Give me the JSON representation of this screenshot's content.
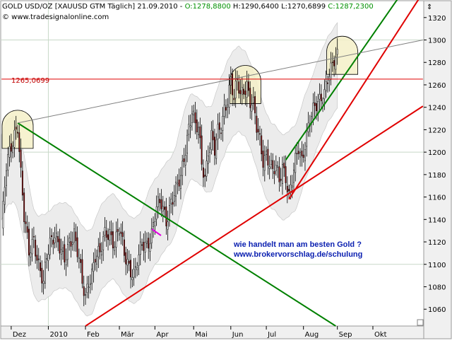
{
  "header": {
    "symbol_text": "GOLD USD/OZ [XAUUSD GTM  Täglich] 21.09.2010 - ",
    "open_text": "O:1278,8800",
    "hl_text": " H:1290,6400 L:1270,6899 ",
    "close_text": "C:1287,2300",
    "copyright": "© www.tradesignalonline.com",
    "scroll_arrow": "⇕"
  },
  "annotation": {
    "line1": "wie handelt man am besten Gold ?",
    "line2": "www.brokervorschlag.de/schulung"
  },
  "level_label": "1265,0699",
  "colors": {
    "up_candle": "#ffffff",
    "down_candle": "#8b0000",
    "wick": "#000000",
    "support_line": "#e00000",
    "downtrend_line": "#008000",
    "uptrend_line": "#008000",
    "resistance_level": "#e00000",
    "upper_trendline": "#808080",
    "envelope_fill": "#ececec",
    "top_highlight": "#f5f0c8",
    "annotation_text": "#0a1fb0"
  },
  "chart_data": {
    "type": "candlestick",
    "title": "GOLD USD/OZ",
    "ylim": [
      1045,
      1335
    ],
    "y_ticks": [
      1060,
      1080,
      1100,
      1120,
      1140,
      1160,
      1180,
      1200,
      1220,
      1240,
      1260,
      1280,
      1300,
      1320
    ],
    "y_tick_labels": [
      "1060",
      "1080",
      "1100",
      "1120",
      "1140",
      "1160",
      "1180",
      "1200",
      "1220",
      "1240",
      "1260",
      "1280",
      "1300",
      "1320"
    ],
    "x_ticks": [
      {
        "label": "Dez",
        "bar": 6
      },
      {
        "label": "2010",
        "bar": 29
      },
      {
        "label": "Feb",
        "bar": 52
      },
      {
        "label": "Mär",
        "bar": 73
      },
      {
        "label": "Apr",
        "bar": 95
      },
      {
        "label": "Mai",
        "bar": 119
      },
      {
        "label": "Jun",
        "bar": 142
      },
      {
        "label": "Jul",
        "bar": 164
      },
      {
        "label": "Aug",
        "bar": 187
      },
      {
        "label": "Sep",
        "bar": 208
      },
      {
        "label": "Okt",
        "bar": 230
      }
    ],
    "bar_count": 262,
    "close_path": [
      [
        0,
        1130
      ],
      [
        3,
        1185
      ],
      [
        6,
        1205
      ],
      [
        8,
        1218
      ],
      [
        10,
        1226
      ],
      [
        12,
        1180
      ],
      [
        14,
        1140
      ],
      [
        17,
        1110
      ],
      [
        20,
        1125
      ],
      [
        23,
        1100
      ],
      [
        26,
        1080
      ],
      [
        28,
        1105
      ],
      [
        30,
        1120
      ],
      [
        33,
        1130
      ],
      [
        36,
        1115
      ],
      [
        39,
        1100
      ],
      [
        42,
        1120
      ],
      [
        45,
        1130
      ],
      [
        48,
        1105
      ],
      [
        50,
        1080
      ],
      [
        52,
        1068
      ],
      [
        54,
        1085
      ],
      [
        56,
        1095
      ],
      [
        58,
        1110
      ],
      [
        61,
        1108
      ],
      [
        64,
        1125
      ],
      [
        67,
        1130
      ],
      [
        70,
        1120
      ],
      [
        73,
        1130
      ],
      [
        76,
        1108
      ],
      [
        79,
        1100
      ],
      [
        82,
        1092
      ],
      [
        85,
        1105
      ],
      [
        87,
        1115
      ],
      [
        90,
        1118
      ],
      [
        93,
        1130
      ],
      [
        96,
        1150
      ],
      [
        99,
        1152
      ],
      [
        102,
        1140
      ],
      [
        105,
        1158
      ],
      [
        108,
        1165
      ],
      [
        111,
        1175
      ],
      [
        114,
        1205
      ],
      [
        116,
        1225
      ],
      [
        118,
        1238
      ],
      [
        120,
        1222
      ],
      [
        122,
        1218
      ],
      [
        124,
        1190
      ],
      [
        126,
        1178
      ],
      [
        128,
        1205
      ],
      [
        130,
        1215
      ],
      [
        132,
        1200
      ],
      [
        134,
        1215
      ],
      [
        136,
        1222
      ],
      [
        138,
        1240
      ],
      [
        140,
        1250
      ],
      [
        142,
        1265
      ],
      [
        144,
        1245
      ],
      [
        146,
        1262
      ],
      [
        148,
        1250
      ],
      [
        150,
        1258
      ],
      [
        152,
        1262
      ],
      [
        154,
        1245
      ],
      [
        156,
        1240
      ],
      [
        158,
        1220
      ],
      [
        160,
        1210
      ],
      [
        162,
        1195
      ],
      [
        164,
        1200
      ],
      [
        166,
        1190
      ],
      [
        168,
        1180
      ],
      [
        170,
        1185
      ],
      [
        172,
        1175
      ],
      [
        174,
        1190
      ],
      [
        176,
        1180
      ],
      [
        178,
        1160
      ],
      [
        180,
        1172
      ],
      [
        182,
        1190
      ],
      [
        184,
        1205
      ],
      [
        186,
        1195
      ],
      [
        188,
        1210
      ],
      [
        190,
        1222
      ],
      [
        192,
        1230
      ],
      [
        194,
        1238
      ],
      [
        196,
        1245
      ],
      [
        198,
        1252
      ],
      [
        200,
        1255
      ],
      [
        202,
        1265
      ],
      [
        204,
        1270
      ],
      [
        206,
        1280
      ],
      [
        208,
        1287
      ]
    ],
    "trendlines": [
      {
        "role": "downtrend",
        "from": [
          10,
          1226
        ],
        "to": [
          207,
          1045
        ]
      },
      {
        "role": "long-term support",
        "from": [
          52,
          1045
        ],
        "to": [
          261,
          1241
        ]
      },
      {
        "role": "short-term support",
        "from": [
          178,
          1158
        ],
        "to": [
          260,
          1340
        ]
      },
      {
        "role": "short-term uptrend",
        "from": [
          176,
          1193
        ],
        "to": [
          247,
          1340
        ]
      },
      {
        "role": "upper resistance",
        "from": [
          10,
          1226
        ],
        "to": [
          261,
          1300
        ]
      },
      {
        "role": "horizontal resistance",
        "from": [
          0,
          1265.0699
        ],
        "to": [
          261,
          1265.0699
        ]
      }
    ],
    "highlighted_tops": [
      {
        "bar": 10,
        "value": 1226
      },
      {
        "bar": 151,
        "value": 1266
      },
      {
        "bar": 211,
        "value": 1292
      }
    ],
    "grid": true,
    "legend": "none"
  }
}
